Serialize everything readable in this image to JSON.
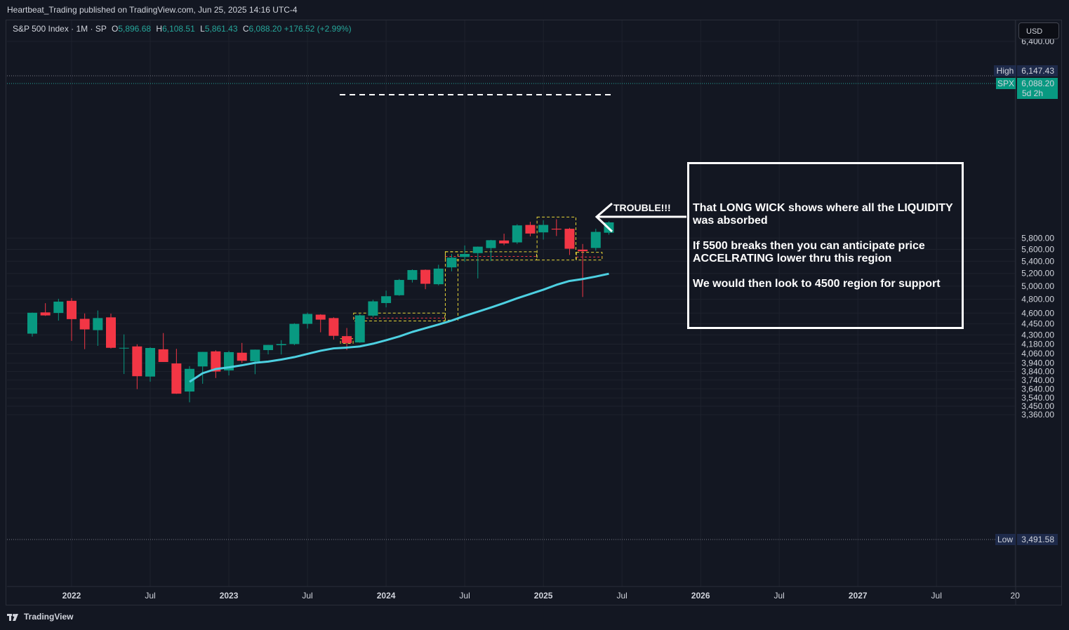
{
  "header": {
    "published_text": "Heartbeat_Trading published on TradingView.com, Jun 25, 2025 14:16 UTC-4"
  },
  "legend": {
    "symbol": "S&P 500 Index · 1M · SP",
    "o_label": "O",
    "o_value": "5,896.68",
    "h_label": "H",
    "h_value": "6,108.51",
    "l_label": "L",
    "l_value": "5,861.43",
    "c_label": "C",
    "c_value": "6,088.20",
    "change": "+176.52 (+2.99%)"
  },
  "currency_button": "USD",
  "footer": {
    "brand": "TradingView"
  },
  "annotations": {
    "trouble": "TROUBLE!!!",
    "box_lines": [
      "That LONG WICK shows where all the LIQUIDITY was absorbed",
      "If 5500 breaks then you can anticipate price ACCELRATING lower thru this region",
      "We would then look to 4500 region for support"
    ]
  },
  "colors": {
    "up": "#089981",
    "down": "#f23645",
    "ma": "#4dd0e1",
    "background": "#131722",
    "grid": "#1e222d",
    "zone": "#ffeb3b",
    "zone_red": "#f23645"
  },
  "chart_data": {
    "type": "candlestick",
    "symbol": "SPX",
    "interval": "1M",
    "scale": "log",
    "y_ticks": [
      "3,360.00",
      "3,450.00",
      "3,540.00",
      "3,640.00",
      "3,740.00",
      "3,840.00",
      "3,940.00",
      "4,060.00",
      "4,180.00",
      "4,300.00",
      "4,450.00",
      "4,600.00",
      "4,800.00",
      "5,000.00",
      "5,200.00",
      "5,400.00",
      "5,600.00",
      "5,800.00",
      "6,400.00"
    ],
    "x_ticks": [
      "2022",
      "Jul",
      "2023",
      "Jul",
      "2024",
      "Jul",
      "2025",
      "Jul",
      "2026",
      "Jul",
      "2027",
      "Jul",
      "20"
    ],
    "ylim": [
      3300,
      6500
    ],
    "high_marker": {
      "label": "High",
      "value": "6,147.43"
    },
    "low_marker": {
      "label": "Low",
      "value": "3,491.58"
    },
    "last_price": {
      "label": "SPX",
      "value": "6,088.20",
      "countdown": "5d 2h"
    },
    "candles": [
      {
        "date": "2021-10",
        "o": 4317,
        "h": 4608,
        "l": 4278,
        "c": 4605
      },
      {
        "date": "2021-11",
        "o": 4610,
        "h": 4743,
        "l": 4560,
        "c": 4567
      },
      {
        "date": "2021-12",
        "o": 4602,
        "h": 4808,
        "l": 4495,
        "c": 4766
      },
      {
        "date": "2022-01",
        "o": 4778,
        "h": 4818,
        "l": 4222,
        "c": 4515
      },
      {
        "date": "2022-02",
        "o": 4519,
        "h": 4595,
        "l": 4115,
        "c": 4374
      },
      {
        "date": "2022-03",
        "o": 4364,
        "h": 4637,
        "l": 4157,
        "c": 4530
      },
      {
        "date": "2022-04",
        "o": 4540,
        "h": 4593,
        "l": 4124,
        "c": 4132
      },
      {
        "date": "2022-05",
        "o": 4130,
        "h": 4307,
        "l": 3811,
        "c": 4132
      },
      {
        "date": "2022-06",
        "o": 4150,
        "h": 4177,
        "l": 3637,
        "c": 3785
      },
      {
        "date": "2022-07",
        "o": 3781,
        "h": 4140,
        "l": 3721,
        "c": 4130
      },
      {
        "date": "2022-08",
        "o": 4113,
        "h": 4325,
        "l": 3955,
        "c": 3955
      },
      {
        "date": "2022-09",
        "o": 3937,
        "h": 4119,
        "l": 3584,
        "c": 3586
      },
      {
        "date": "2022-10",
        "o": 3610,
        "h": 3905,
        "l": 3491.58,
        "c": 3872
      },
      {
        "date": "2022-11",
        "o": 3901,
        "h": 4080,
        "l": 3698,
        "c": 4080
      },
      {
        "date": "2022-12",
        "o": 4087,
        "h": 4101,
        "l": 3764,
        "c": 3840
      },
      {
        "date": "2023-01",
        "o": 3853,
        "h": 4095,
        "l": 3794,
        "c": 4077
      },
      {
        "date": "2023-02",
        "o": 4070,
        "h": 4195,
        "l": 3943,
        "c": 3970
      },
      {
        "date": "2023-03",
        "o": 3963,
        "h": 4110,
        "l": 3809,
        "c": 4109
      },
      {
        "date": "2023-04",
        "o": 4103,
        "h": 4170,
        "l": 4049,
        "c": 4169
      },
      {
        "date": "2023-05",
        "o": 4166,
        "h": 4231,
        "l": 4048,
        "c": 4180
      },
      {
        "date": "2023-06",
        "o": 4180,
        "h": 4458,
        "l": 4166,
        "c": 4450
      },
      {
        "date": "2023-07",
        "o": 4450,
        "h": 4607,
        "l": 4385,
        "c": 4588
      },
      {
        "date": "2023-08",
        "o": 4578,
        "h": 4584,
        "l": 4335,
        "c": 4508
      },
      {
        "date": "2023-09",
        "o": 4530,
        "h": 4541,
        "l": 4238,
        "c": 4288
      },
      {
        "date": "2023-10",
        "o": 4284,
        "h": 4393,
        "l": 4103,
        "c": 4194
      },
      {
        "date": "2023-11",
        "o": 4201,
        "h": 4587,
        "l": 4197,
        "c": 4568
      },
      {
        "date": "2023-12",
        "o": 4564,
        "h": 4793,
        "l": 4546,
        "c": 4770
      },
      {
        "date": "2024-01",
        "o": 4745,
        "h": 4931,
        "l": 4682,
        "c": 4846
      },
      {
        "date": "2024-02",
        "o": 4861,
        "h": 5111,
        "l": 4853,
        "c": 5096
      },
      {
        "date": "2024-03",
        "o": 5098,
        "h": 5265,
        "l": 5056,
        "c": 5254
      },
      {
        "date": "2024-04",
        "o": 5258,
        "h": 5264,
        "l": 4953,
        "c": 5036
      },
      {
        "date": "2024-05",
        "o": 5029,
        "h": 5341,
        "l": 5011,
        "c": 5278
      },
      {
        "date": "2024-06",
        "o": 5298,
        "h": 5524,
        "l": 5234,
        "c": 5460
      },
      {
        "date": "2024-07",
        "o": 5471,
        "h": 5669,
        "l": 5390,
        "c": 5522
      },
      {
        "date": "2024-08",
        "o": 5537,
        "h": 5651,
        "l": 5120,
        "c": 5648
      },
      {
        "date": "2024-09",
        "o": 5623,
        "h": 5768,
        "l": 5403,
        "c": 5762
      },
      {
        "date": "2024-10",
        "o": 5757,
        "h": 5879,
        "l": 5674,
        "c": 5705
      },
      {
        "date": "2024-11",
        "o": 5723,
        "h": 6053,
        "l": 5696,
        "c": 6032
      },
      {
        "date": "2024-12",
        "o": 6040,
        "h": 6099,
        "l": 5832,
        "c": 5882
      },
      {
        "date": "2025-01",
        "o": 5903,
        "h": 6128,
        "l": 5773,
        "c": 6041
      },
      {
        "date": "2025-02",
        "o": 5970,
        "h": 6147.43,
        "l": 5837,
        "c": 5955
      },
      {
        "date": "2025-03",
        "o": 5969,
        "h": 5987,
        "l": 5505,
        "c": 5612
      },
      {
        "date": "2025-04",
        "o": 5597,
        "h": 5695,
        "l": 4835,
        "c": 5569
      },
      {
        "date": "2025-05",
        "o": 5625,
        "h": 5969,
        "l": 5578,
        "c": 5912
      },
      {
        "date": "2025-06",
        "o": 5896.68,
        "h": 6108.51,
        "l": 5861.43,
        "c": 6088.2
      }
    ],
    "moving_average": [
      {
        "date": "2022-10",
        "value": 3720
      },
      {
        "date": "2022-11",
        "value": 3820
      },
      {
        "date": "2022-12",
        "value": 3870
      },
      {
        "date": "2023-01",
        "value": 3890
      },
      {
        "date": "2023-02",
        "value": 3915
      },
      {
        "date": "2023-03",
        "value": 3945
      },
      {
        "date": "2023-04",
        "value": 3960
      },
      {
        "date": "2023-05",
        "value": 3985
      },
      {
        "date": "2023-06",
        "value": 4015
      },
      {
        "date": "2023-07",
        "value": 4055
      },
      {
        "date": "2023-08",
        "value": 4095
      },
      {
        "date": "2023-09",
        "value": 4125
      },
      {
        "date": "2023-10",
        "value": 4135
      },
      {
        "date": "2023-11",
        "value": 4150
      },
      {
        "date": "2023-12",
        "value": 4185
      },
      {
        "date": "2024-01",
        "value": 4230
      },
      {
        "date": "2024-02",
        "value": 4280
      },
      {
        "date": "2024-03",
        "value": 4340
      },
      {
        "date": "2024-04",
        "value": 4390
      },
      {
        "date": "2024-05",
        "value": 4440
      },
      {
        "date": "2024-06",
        "value": 4495
      },
      {
        "date": "2024-07",
        "value": 4560
      },
      {
        "date": "2024-08",
        "value": 4620
      },
      {
        "date": "2024-09",
        "value": 4680
      },
      {
        "date": "2024-10",
        "value": 4745
      },
      {
        "date": "2024-11",
        "value": 4815
      },
      {
        "date": "2024-12",
        "value": 4880
      },
      {
        "date": "2025-01",
        "value": 4945
      },
      {
        "date": "2025-02",
        "value": 5020
      },
      {
        "date": "2025-03",
        "value": 5080
      },
      {
        "date": "2025-04",
        "value": 5110
      },
      {
        "date": "2025-05",
        "value": 5150
      },
      {
        "date": "2025-06",
        "value": 5195
      }
    ],
    "horizontal_lines": [
      {
        "value": 5990,
        "style": "dashed",
        "from": "2024-02",
        "to": "2025-06"
      }
    ],
    "zones": [
      {
        "from": "2024-06",
        "to": "2024-12",
        "top": 5560,
        "bottom": 5420,
        "color": "yellow"
      },
      {
        "from": "2025-01",
        "to": "2025-03",
        "top": 6190,
        "bottom": 5420,
        "color": "yellow"
      },
      {
        "from": "2025-04",
        "to": "2025-05",
        "top": 5550,
        "bottom": 5420,
        "color": "yellow"
      },
      {
        "from": "2023-11",
        "to": "2024-05",
        "top": 4600,
        "bottom": 4490,
        "color": "yellow"
      },
      {
        "from": "2024-06",
        "to": "2024-06",
        "top": 5560,
        "bottom": 4500,
        "color": "yellow"
      },
      {
        "from": "2023-10",
        "to": "2023-10",
        "top": 4250,
        "bottom": 4190,
        "color": "yellow"
      }
    ]
  }
}
